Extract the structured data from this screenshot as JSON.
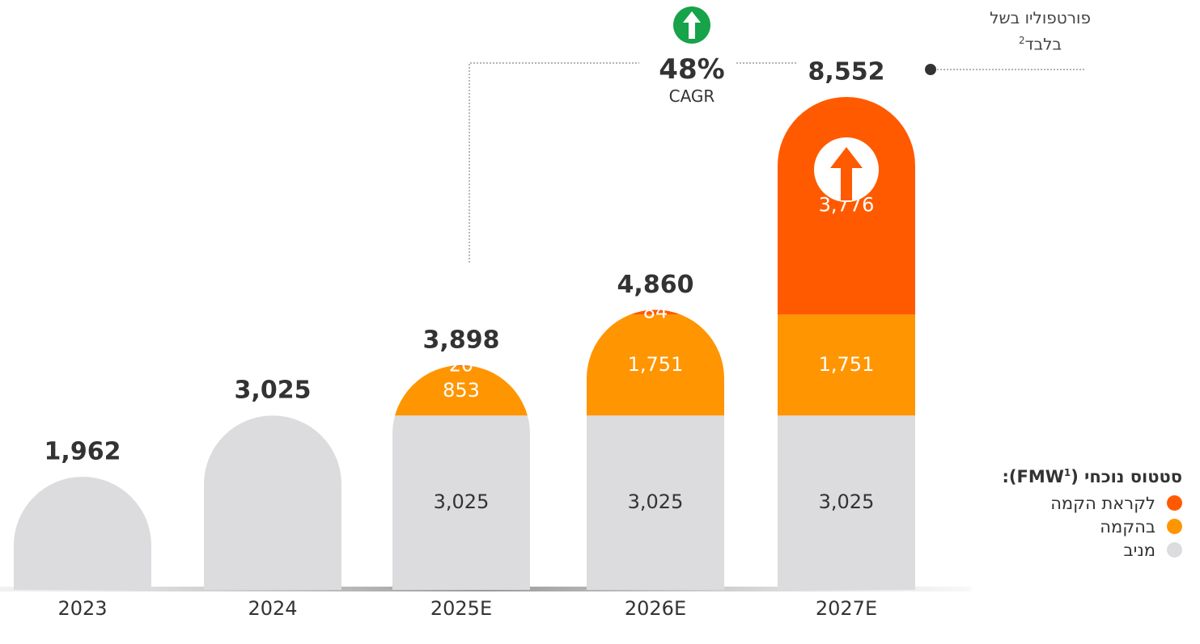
{
  "chart_data": {
    "type": "stacked-bar",
    "categories": [
      "2023",
      "2024",
      "2025E",
      "2026E",
      "2027E"
    ],
    "series": [
      {
        "name": "מניב",
        "color": "#dcdcde",
        "values": [
          1962,
          3025,
          3025,
          3025,
          3025
        ],
        "value_labels": [
          null,
          null,
          "3,025",
          "3,025",
          "3,025"
        ]
      },
      {
        "name": "בהקמה",
        "color": "#ff9500",
        "values": [
          null,
          null,
          853,
          1751,
          1751
        ],
        "value_labels": [
          null,
          null,
          "853",
          "1,751",
          "1,751"
        ]
      },
      {
        "name": "לקראת הקמה",
        "color": "#ff5a00",
        "values": [
          null,
          null,
          20,
          84,
          3776
        ],
        "value_labels": [
          null,
          null,
          "20",
          "84",
          "3,776"
        ]
      }
    ],
    "totals": [
      1962,
      3025,
      3898,
      4860,
      8552
    ],
    "total_labels": [
      "1,962",
      "3,025",
      "3,898",
      "4,860",
      "8,552"
    ],
    "legend": {
      "title_text": "סטטוס נוכחי (FMW",
      "title_sup": "1",
      "title_end": "):"
    },
    "annotations": {
      "cagr_value": "48%",
      "cagr_label": "CAGR",
      "note_line1": "פורטפוליו בשל",
      "note_line2": "בלבד",
      "note_sup": "2"
    }
  }
}
